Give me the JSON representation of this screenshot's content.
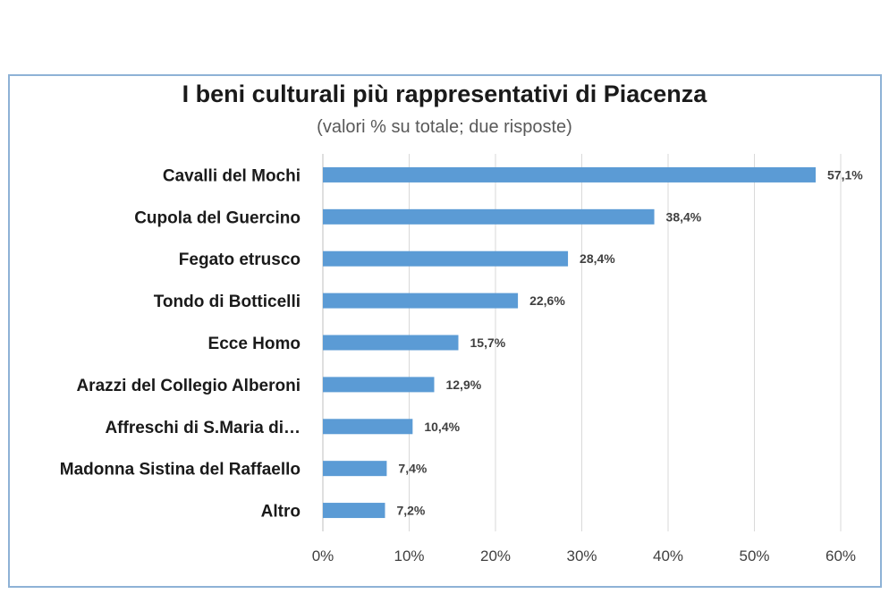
{
  "chart_data": {
    "type": "bar",
    "orientation": "horizontal",
    "title": "I beni culturali più rappresentativi di Piacenza",
    "subtitle": "(valori % su totale; due risposte)",
    "categories": [
      "Cavalli del Mochi",
      "Cupola del Guercino",
      "Fegato etrusco",
      "Tondo di Botticelli",
      "Ecce Homo",
      "Arazzi del Collegio Alberoni",
      "Affreschi di S.Maria di…",
      "Madonna Sistina del Raffaello",
      "Altro"
    ],
    "values": [
      57.1,
      38.4,
      28.4,
      22.6,
      15.7,
      12.9,
      10.4,
      7.4,
      7.2
    ],
    "value_labels": [
      "57,1%",
      "38,4%",
      "28,4%",
      "22,6%",
      "15,7%",
      "12,9%",
      "10,4%",
      "7,4%",
      "7,2%"
    ],
    "xlim": [
      0,
      60
    ],
    "xticks": [
      "0%",
      "10%",
      "20%",
      "30%",
      "40%",
      "50%",
      "60%"
    ],
    "grid": "vertical",
    "bar_color": "#5b9bd5"
  }
}
